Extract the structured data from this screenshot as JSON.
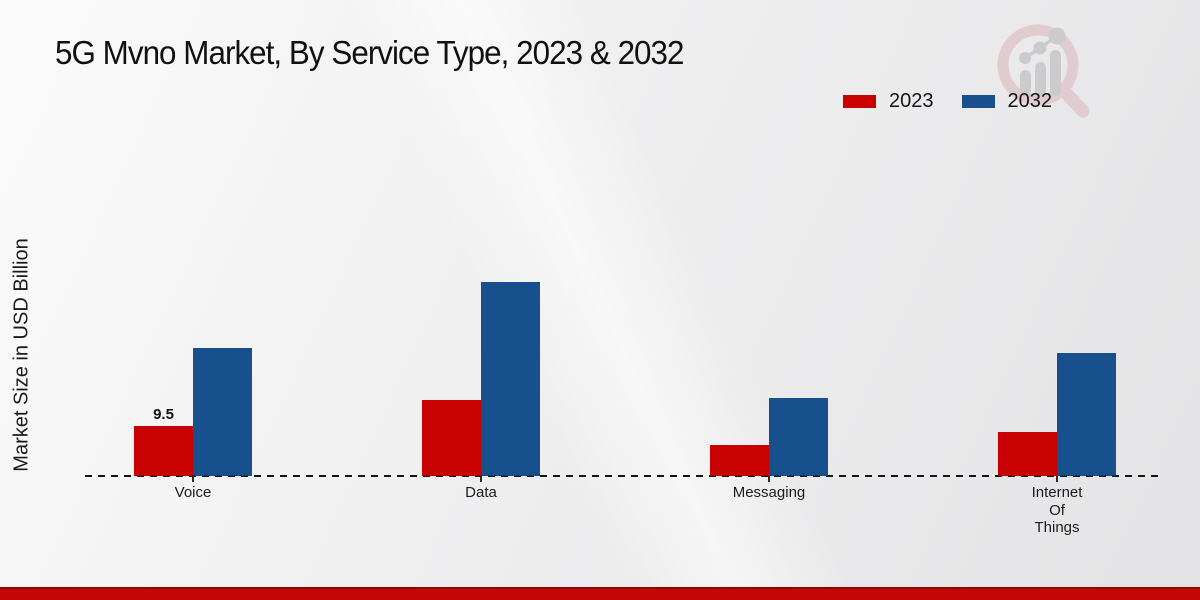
{
  "chart_data": {
    "type": "bar",
    "title": "5G Mvno Market, By Service Type, 2023 & 2032",
    "xlabel": "",
    "ylabel": "Market Size in USD Billion",
    "categories": [
      "Voice",
      "Data",
      "Messaging",
      "Internet Of Things"
    ],
    "series": [
      {
        "name": "2023",
        "color": "#c80202",
        "values": [
          9.5,
          14.4,
          5.9,
          8.4
        ]
      },
      {
        "name": "2032",
        "color": "#17508c",
        "values": [
          24.3,
          36.8,
          14.8,
          23.4
        ]
      }
    ],
    "value_labels": [
      {
        "category": "Voice",
        "series": "2023",
        "text": "9.5"
      }
    ],
    "ylim": [
      0,
      40
    ],
    "grid": false,
    "baseline_style": "dashed",
    "legend_position": "top-right"
  },
  "colors": {
    "bar_2023": "#c80202",
    "bar_2032": "#17508c",
    "footer_strip": "#c40707",
    "watermark_pink": "#dfc6ca",
    "watermark_gray": "#c6c6c9",
    "background_light": "#fbfbfb",
    "background_dark": "#e3e3e5"
  },
  "watermark": {
    "icon": "magnifier-bar-chart-logo"
  }
}
